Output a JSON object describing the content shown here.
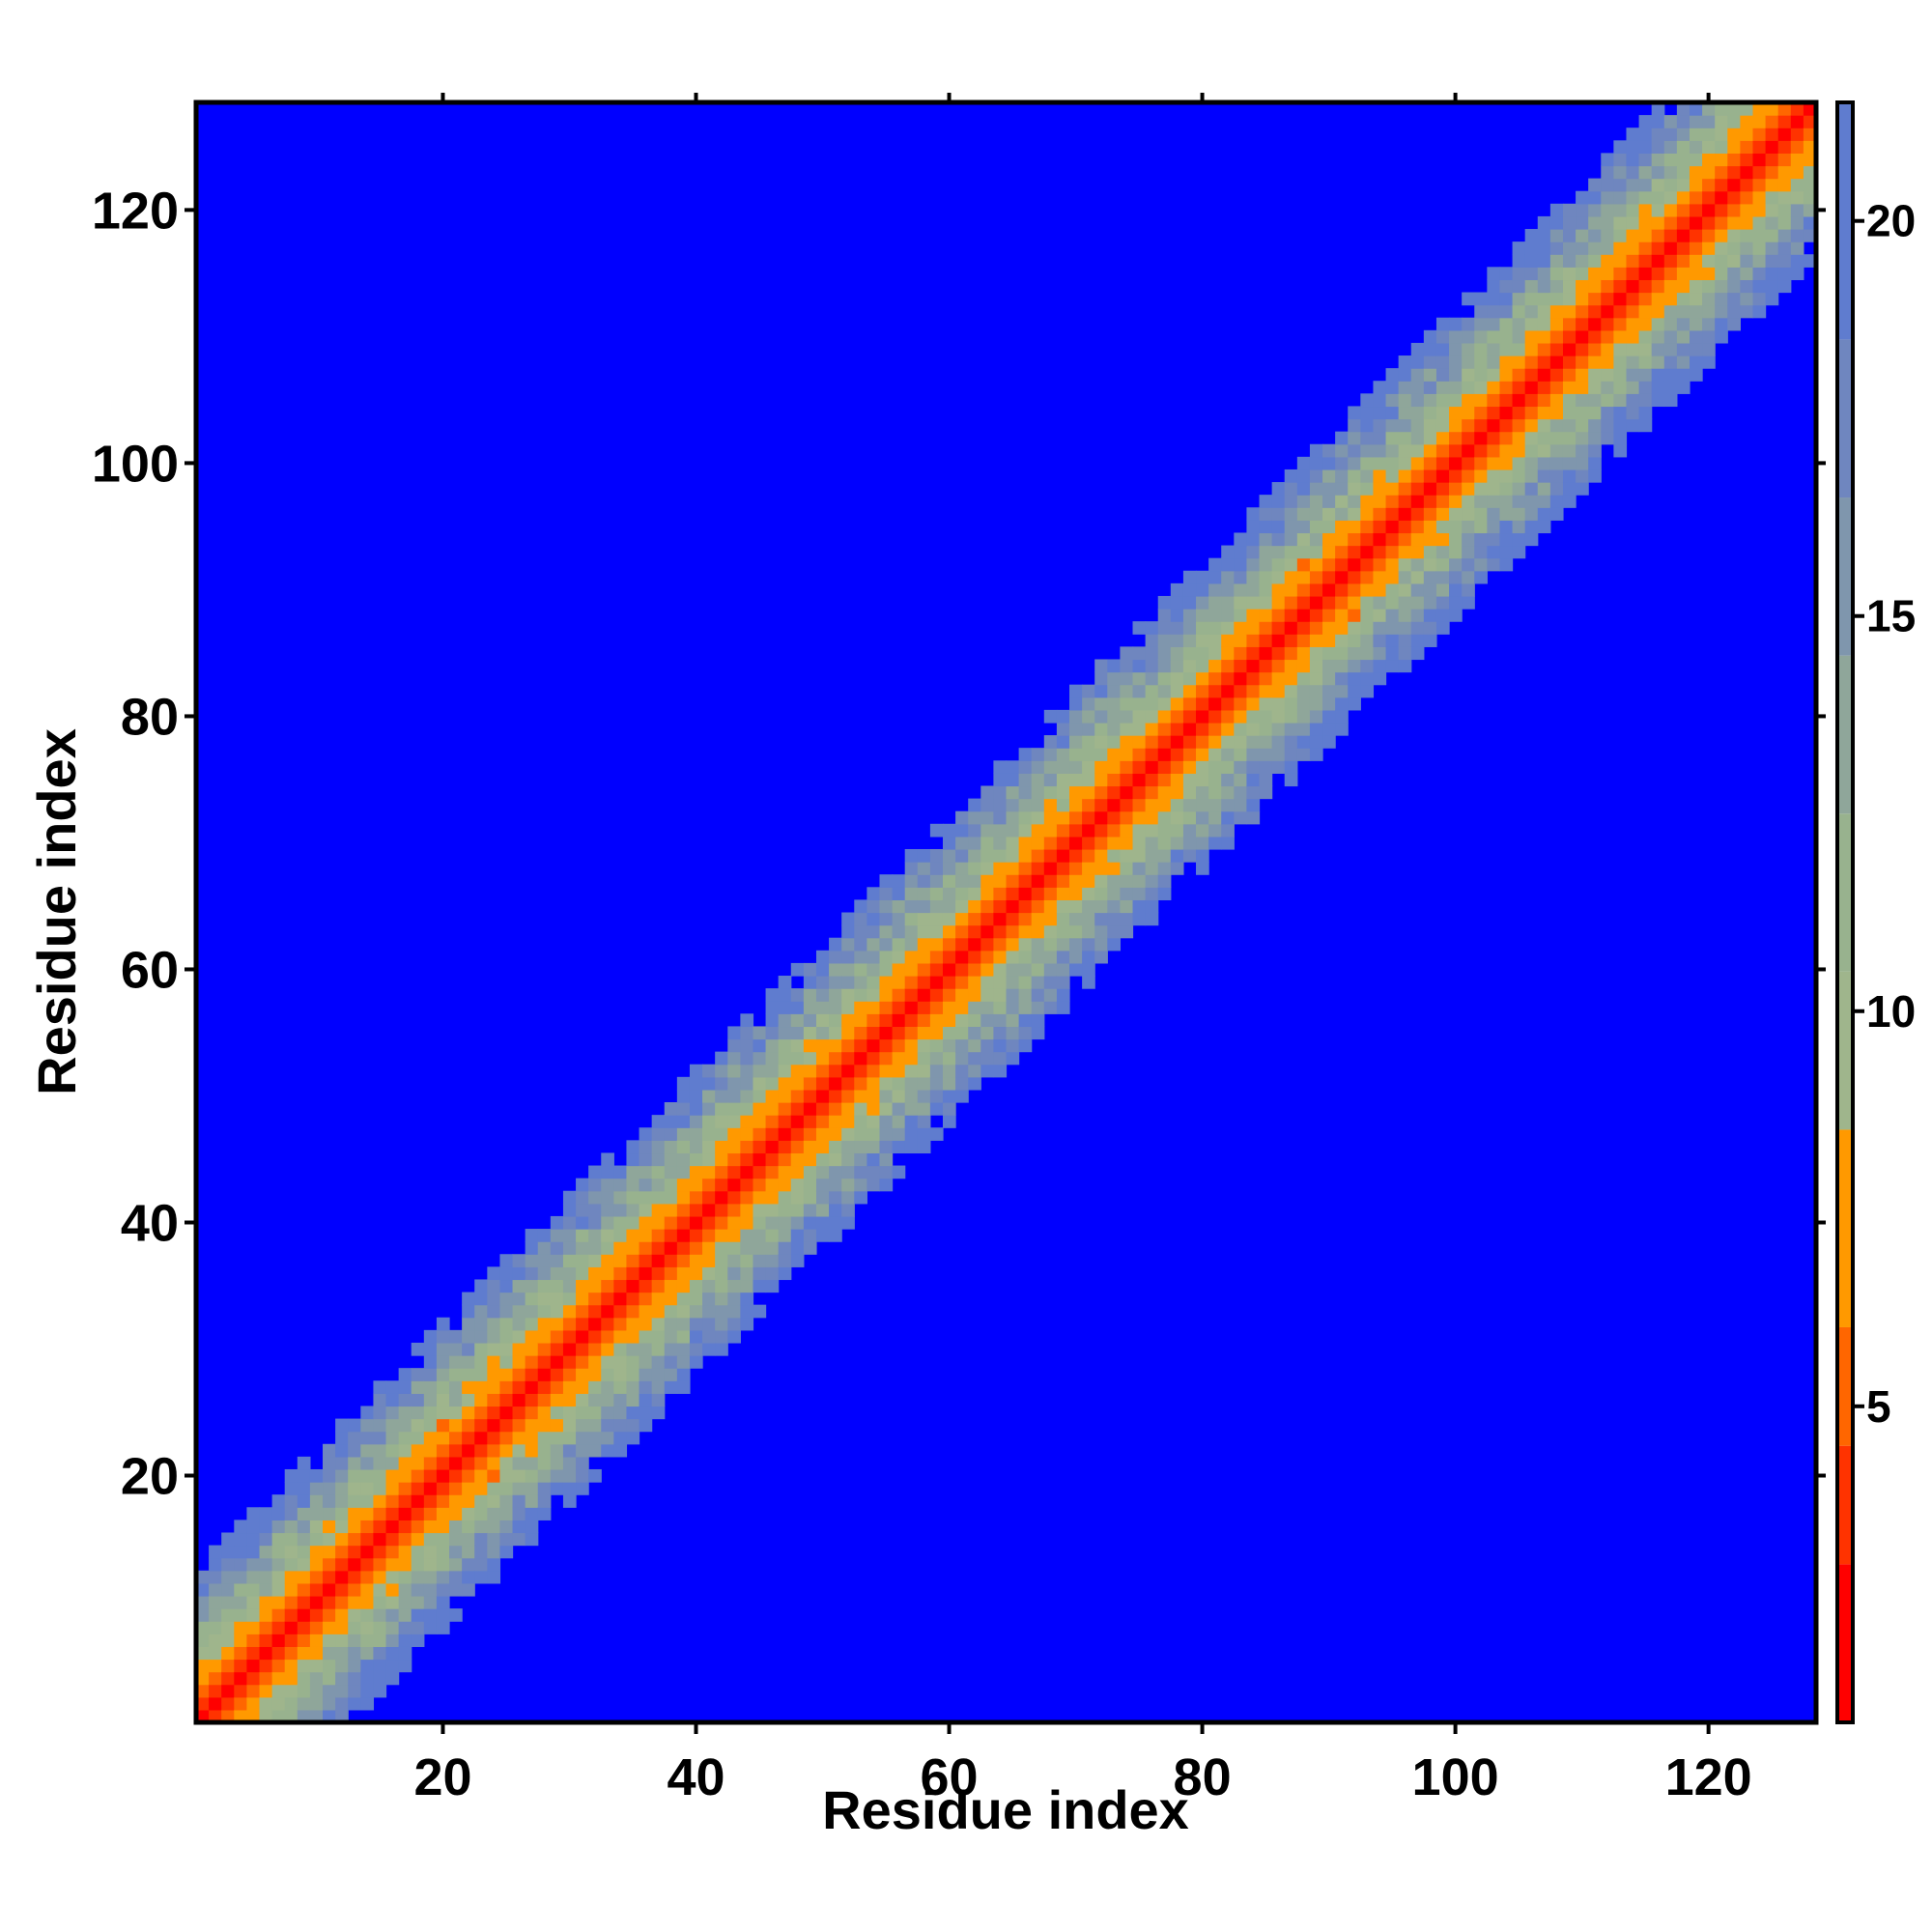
{
  "chart_data": {
    "type": "heatmap",
    "title": "",
    "xlabel": "Residue index",
    "ylabel": "Residue index",
    "n_residues": 128,
    "xlim": [
      0.5,
      128.5
    ],
    "ylim": [
      0.5,
      128.5
    ],
    "x_ticks": [
      20,
      40,
      60,
      80,
      100,
      120
    ],
    "y_ticks": [
      20,
      40,
      60,
      80,
      100,
      120
    ],
    "colorbar": {
      "range": [
        1,
        21.5
      ],
      "ticks": [
        5,
        10,
        15,
        20
      ],
      "levels": [
        {
          "max": 3.0,
          "color": "#ff0000"
        },
        {
          "max": 4.5,
          "color": "#ff3300"
        },
        {
          "max": 6.0,
          "color": "#ff6600"
        },
        {
          "max": 8.5,
          "color": "#ff9900"
        },
        {
          "max": 10.5,
          "color": "#9fb58c"
        },
        {
          "max": 12.5,
          "color": "#98b28e"
        },
        {
          "max": 14.5,
          "color": "#8fa69a"
        },
        {
          "max": 16.5,
          "color": "#7f96ad"
        },
        {
          "max": 18.5,
          "color": "#6f86bf"
        },
        {
          "max": 21.5,
          "color": "#5f7ccf"
        }
      ],
      "beyond_color": "#0000ff"
    },
    "description_values": {
      "diagonal_distance": 0,
      "band_profile_offset_to_distance": [
        [
          0,
          3.8
        ],
        [
          1,
          3.8
        ],
        [
          2,
          5.5
        ],
        [
          3,
          6.5
        ],
        [
          4,
          8.5
        ],
        [
          5,
          10.5
        ],
        [
          6,
          12
        ],
        [
          7,
          13.5
        ],
        [
          8,
          15
        ],
        [
          9,
          16.5
        ],
        [
          10,
          18
        ],
        [
          11,
          19.5
        ],
        [
          12,
          21
        ]
      ]
    },
    "grid": false,
    "legend": "colorbar-right"
  }
}
